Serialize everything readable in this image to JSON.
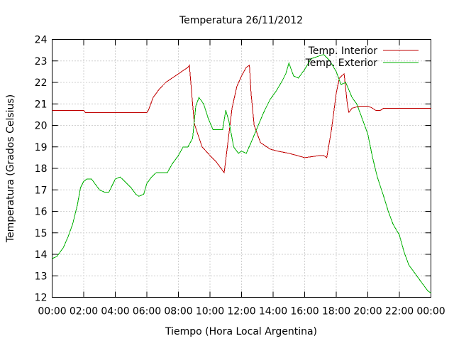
{
  "chart_data": {
    "type": "line",
    "title": "Temperatura 26/11/2012",
    "xlabel": "Tiempo (Hora Local Argentina)",
    "ylabel": "Temperatura (Grados Celsius)",
    "xlim": [
      0,
      24
    ],
    "ylim": [
      12,
      24
    ],
    "grid": true,
    "legend_position": "top-right",
    "x_tick_labels": [
      "00:00",
      "02:00",
      "04:00",
      "06:00",
      "08:00",
      "10:00",
      "12:00",
      "14:00",
      "16:00",
      "18:00",
      "20:00",
      "22:00",
      "00:00"
    ],
    "y_tick_labels": [
      "12",
      "13",
      "14",
      "15",
      "16",
      "17",
      "18",
      "19",
      "20",
      "21",
      "22",
      "23",
      "24"
    ],
    "series": [
      {
        "name": "Temp. Interior",
        "color": "#c00000",
        "x": [
          0,
          2,
          2.1,
          4,
          6,
          6.1,
          6.4,
          6.8,
          7.2,
          7.6,
          8,
          8.2,
          8.4,
          8.6,
          8.7,
          8.75,
          9,
          9.5,
          10,
          10.4,
          10.7,
          10.9,
          11.1,
          11.4,
          11.7,
          12,
          12.3,
          12.5,
          12.6,
          12.8,
          13.2,
          13.8,
          14.3,
          15,
          15.5,
          16,
          17,
          17.2,
          17.4,
          17.7,
          18,
          18.2,
          18.5,
          18.7,
          18.8,
          19,
          19.5,
          20,
          20.3,
          20.5,
          20.8,
          21,
          22,
          23,
          24
        ],
        "y": [
          20.7,
          20.7,
          20.6,
          20.6,
          20.6,
          20.7,
          21.3,
          21.7,
          22,
          22.2,
          22.4,
          22.5,
          22.6,
          22.7,
          22.8,
          22.3,
          20.1,
          19,
          18.6,
          18.3,
          18,
          17.8,
          19,
          20.8,
          21.8,
          22.3,
          22.7,
          22.8,
          21.5,
          20,
          19.2,
          18.9,
          18.8,
          18.7,
          18.6,
          18.5,
          18.6,
          18.6,
          18.5,
          19.8,
          21.5,
          22.2,
          22.4,
          21,
          20.6,
          20.8,
          20.9,
          20.9,
          20.8,
          20.7,
          20.7,
          20.8,
          20.8,
          20.8,
          20.8
        ]
      },
      {
        "name": "Temp. Exterior",
        "color": "#00b000",
        "x": [
          0,
          0.3,
          0.7,
          1,
          1.3,
          1.6,
          1.8,
          2,
          2.2,
          2.5,
          2.8,
          3,
          3.3,
          3.6,
          4,
          4.3,
          4.6,
          5,
          5.3,
          5.5,
          5.8,
          6,
          6.3,
          6.6,
          7,
          7.3,
          7.6,
          8,
          8.3,
          8.6,
          8.9,
          9.1,
          9.3,
          9.6,
          9.9,
          10.2,
          10.5,
          10.8,
          11,
          11.2,
          11.5,
          11.8,
          12,
          12.3,
          12.6,
          13,
          13.4,
          13.8,
          14.2,
          14.6,
          14.8,
          15,
          15.3,
          15.6,
          16,
          16.4,
          16.8,
          17.2,
          17.6,
          18,
          18.3,
          18.6,
          19,
          19.3,
          19.6,
          20,
          20.3,
          20.6,
          21,
          21.3,
          21.6,
          22,
          22.3,
          22.6,
          23,
          23.3,
          23.6,
          23.8,
          24
        ],
        "y": [
          13.8,
          13.9,
          14.3,
          14.8,
          15.4,
          16.3,
          17.1,
          17.4,
          17.5,
          17.5,
          17.2,
          17,
          16.9,
          16.9,
          17.5,
          17.6,
          17.4,
          17.1,
          16.8,
          16.7,
          16.8,
          17.3,
          17.6,
          17.8,
          17.8,
          17.8,
          18.2,
          18.6,
          19,
          19,
          19.4,
          20.9,
          21.3,
          21,
          20.3,
          19.8,
          19.8,
          19.8,
          20.7,
          20.2,
          19,
          18.7,
          18.8,
          18.7,
          19.2,
          19.9,
          20.6,
          21.2,
          21.6,
          22.1,
          22.4,
          22.9,
          22.3,
          22.2,
          22.6,
          23.1,
          23.2,
          23.3,
          23,
          22.5,
          21.9,
          22,
          21.3,
          21,
          20.4,
          19.6,
          18.5,
          17.6,
          16.7,
          16,
          15.4,
          14.9,
          14.1,
          13.5,
          13.1,
          12.8,
          12.5,
          12.3,
          12.2
        ]
      }
    ]
  }
}
